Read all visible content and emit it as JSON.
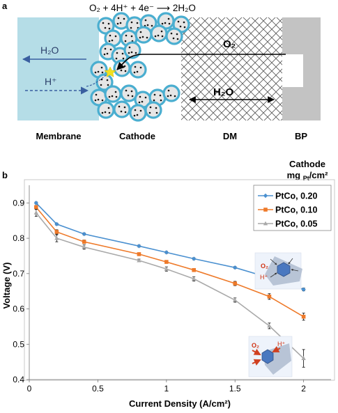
{
  "panel_a": {
    "panel_label": "a",
    "equation": "O₂ + 4H⁺ + 4e⁻ ⟶ 2H₂O",
    "membrane_h2o": "H₂O",
    "membrane_hplus": "H⁺",
    "dm_o2": "O₂",
    "dm_h2o": "H₂O",
    "region_labels": [
      "Membrane",
      "Cathode",
      "DM",
      "BP"
    ],
    "colors": {
      "membrane": "#b5dde7",
      "particle_ring": "#4aaed0",
      "particle_fill": "#e6e6e6",
      "bp": "#c3c3c3",
      "arrow": "#3a5fa0",
      "reaction_star": "#f0e020"
    }
  },
  "panel_b": {
    "panel_label": "b",
    "inset_top": {
      "o2": "O₂",
      "hplus": "H⁺"
    },
    "inset_bottom": {
      "o2": "O₂",
      "hplus": "H⁺"
    }
  },
  "chart_data": {
    "type": "line",
    "title": "",
    "legend_title_line1": "Cathode",
    "legend_title_line2": "mg Pt/cm²",
    "xlabel": "Current Density (A/cm²)",
    "ylabel": "Voltage (V)",
    "xlim": [
      0,
      2.2
    ],
    "ylim": [
      0.4,
      0.95
    ],
    "x_ticks": [
      0,
      0.5,
      1,
      1.5,
      2
    ],
    "x_tick_labels": [
      "0",
      "0.5",
      "1",
      "1.5",
      "2"
    ],
    "y_ticks": [
      0.4,
      0.5,
      0.6,
      0.7,
      0.8,
      0.9
    ],
    "y_tick_labels": [
      "0.4",
      "0.5",
      "0.6",
      "0.7",
      "0.8",
      "0.9"
    ],
    "grid": false,
    "legend_position": "top-right",
    "series": [
      {
        "name": "PtCo, 0.20",
        "color": "#4a90d0",
        "marker": "diamond",
        "x": [
          0.05,
          0.2,
          0.4,
          0.8,
          1.0,
          1.2,
          1.5,
          1.75,
          2.0
        ],
        "y": [
          0.9,
          0.84,
          0.812,
          0.778,
          0.76,
          0.742,
          0.717,
          0.688,
          0.655
        ],
        "err": [
          0.003,
          0.003,
          0.003,
          0.003,
          0.003,
          0.003,
          0.003,
          0.004,
          0.004
        ]
      },
      {
        "name": "PtCo, 0.10",
        "color": "#ee7a2a",
        "marker": "square",
        "x": [
          0.05,
          0.2,
          0.4,
          0.8,
          1.0,
          1.2,
          1.5,
          1.75,
          2.0
        ],
        "y": [
          0.888,
          0.818,
          0.79,
          0.755,
          0.733,
          0.71,
          0.672,
          0.635,
          0.578
        ],
        "err": [
          0.005,
          0.006,
          0.005,
          0.004,
          0.004,
          0.004,
          0.006,
          0.008,
          0.01
        ]
      },
      {
        "name": "PtCo, 0.05",
        "color": "#a9a9a9",
        "marker": "triangle",
        "x": [
          0.05,
          0.2,
          0.4,
          0.8,
          1.0,
          1.2,
          1.5,
          1.75,
          2.0
        ],
        "y": [
          0.872,
          0.8,
          0.775,
          0.737,
          0.713,
          0.685,
          0.625,
          0.552,
          0.46
        ],
        "err": [
          0.01,
          0.01,
          0.006,
          0.004,
          0.006,
          0.006,
          0.006,
          0.008,
          0.025
        ]
      }
    ]
  }
}
